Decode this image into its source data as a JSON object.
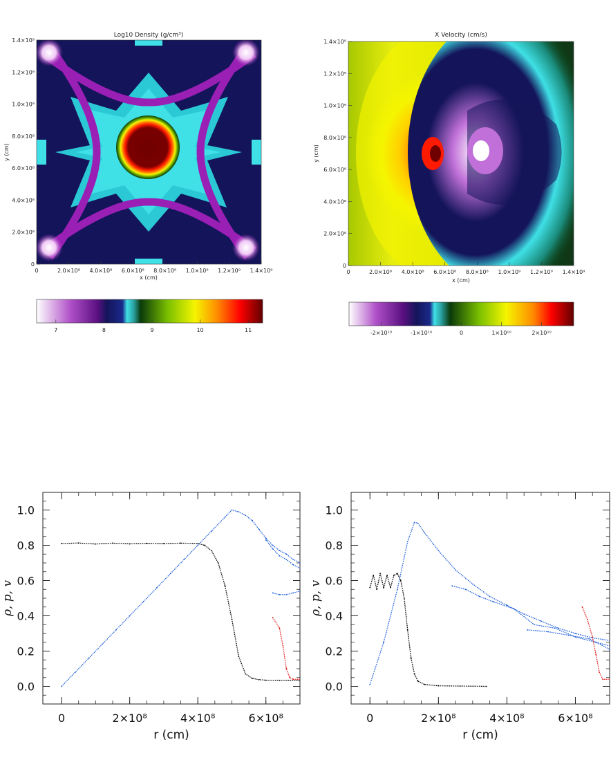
{
  "chart_data": [
    {
      "type": "heatmap",
      "title": "Log10 Density (g/cm³)",
      "xlabel": "x (cm)",
      "ylabel": "y (cm)",
      "xlim": [
        0,
        1400000000.0
      ],
      "ylim": [
        0,
        1400000000.0
      ],
      "x_ticks": [
        "0",
        "2.0×10⁸",
        "4.0×10⁸",
        "6.0×10⁸",
        "8.0×10⁸",
        "1.0×10⁹",
        "1.2×10⁹",
        "1.4×10⁹"
      ],
      "y_ticks": [
        "0",
        "2.0×10⁸",
        "4.0×10⁸",
        "6.0×10⁸",
        "8.0×10⁸",
        "1.0×10⁹",
        "1.2×10⁹",
        "1.4×10⁹"
      ],
      "colorbar": {
        "ticks": [
          "7",
          "8",
          "9",
          "10",
          "11"
        ],
        "range": [
          6.6,
          11.3
        ],
        "colors": [
          "#ffffff",
          "#9a1fb5",
          "#14145a",
          "#3fe0e6",
          "#0a3a0a",
          "#f5f500",
          "#ff6a00",
          "#ff0000",
          "#700000"
        ]
      }
    },
    {
      "type": "heatmap",
      "title": "X Velocity (cm/s)",
      "xlabel": "x (cm)",
      "ylabel": "y (cm)",
      "xlim": [
        0,
        1400000000.0
      ],
      "ylim": [
        0,
        1400000000.0
      ],
      "x_ticks": [
        "0",
        "2.0×10⁸",
        "4.0×10⁸",
        "6.0×10⁸",
        "8.0×10⁸",
        "1.0×10⁹",
        "1.2×10⁹",
        "1.4×10⁹"
      ],
      "y_ticks": [
        "0",
        "2.0×10⁸",
        "4.0×10⁸",
        "6.0×10⁸",
        "8.0×10⁸",
        "1.0×10⁹",
        "1.2×10⁹",
        "1.4×10⁹"
      ],
      "colorbar": {
        "ticks": [
          "-2×10¹⁰",
          "-1×10¹⁰",
          "0",
          "1×10¹⁰",
          "2×10¹⁰"
        ],
        "range": [
          -28000000000.0,
          28000000000.0
        ],
        "colors": [
          "#ffffff",
          "#9a1fb5",
          "#14145a",
          "#3fe0e6",
          "#0a3a0a",
          "#f5f500",
          "#ff6a00",
          "#ff0000",
          "#700000"
        ]
      }
    },
    {
      "type": "scatter",
      "xlabel": "r (cm)",
      "ylabel": "ρ, p, v",
      "xlim": [
        -55000000.0,
        700000000.0
      ],
      "ylim": [
        -0.1,
        1.1
      ],
      "x_ticks": [
        {
          "value": 0,
          "label": "0"
        },
        {
          "value": 200000000.0,
          "label": "2×10⁸"
        },
        {
          "value": 400000000.0,
          "label": "4×10⁸"
        },
        {
          "value": 600000000.0,
          "label": "6×10⁸"
        }
      ],
      "y_ticks": [
        0.0,
        0.2,
        0.4,
        0.6,
        0.8,
        1.0
      ],
      "series": [
        {
          "color": "#1f5fdc",
          "points": [
            [
              0,
              0.0
            ],
            [
              40000000.0,
              0.08
            ],
            [
              80000000.0,
              0.16
            ],
            [
              120000000.0,
              0.24
            ],
            [
              160000000.0,
              0.32
            ],
            [
              200000000.0,
              0.4
            ],
            [
              240000000.0,
              0.48
            ],
            [
              280000000.0,
              0.56
            ],
            [
              320000000.0,
              0.64
            ],
            [
              360000000.0,
              0.72
            ],
            [
              400000000.0,
              0.8
            ],
            [
              440000000.0,
              0.88
            ],
            [
              480000000.0,
              0.96
            ],
            [
              500000000.0,
              1.0
            ],
            [
              520000000.0,
              0.99
            ],
            [
              540000000.0,
              0.97
            ],
            [
              560000000.0,
              0.94
            ],
            [
              580000000.0,
              0.89
            ],
            [
              600000000.0,
              0.84
            ],
            [
              620000000.0,
              0.8
            ],
            [
              640000000.0,
              0.77
            ],
            [
              660000000.0,
              0.75
            ],
            [
              680000000.0,
              0.72
            ],
            [
              700000000.0,
              0.7
            ]
          ]
        },
        {
          "color": "#1f5fdc",
          "points": [
            [
              600000000.0,
              0.83
            ],
            [
              620000000.0,
              0.78
            ],
            [
              640000000.0,
              0.74
            ],
            [
              660000000.0,
              0.72
            ],
            [
              680000000.0,
              0.69
            ],
            [
              700000000.0,
              0.67
            ]
          ]
        },
        {
          "color": "#1f5fdc",
          "points": [
            [
              620000000.0,
              0.53
            ],
            [
              640000000.0,
              0.52
            ],
            [
              660000000.0,
              0.52
            ],
            [
              680000000.0,
              0.53
            ],
            [
              700000000.0,
              0.54
            ]
          ]
        },
        {
          "color": "#000000",
          "points": [
            [
              0,
              0.81
            ],
            [
              50000000.0,
              0.813
            ],
            [
              100000000.0,
              0.807
            ],
            [
              150000000.0,
              0.812
            ],
            [
              200000000.0,
              0.808
            ],
            [
              250000000.0,
              0.811
            ],
            [
              300000000.0,
              0.809
            ],
            [
              350000000.0,
              0.812
            ],
            [
              400000000.0,
              0.81
            ],
            [
              420000000.0,
              0.8
            ],
            [
              440000000.0,
              0.77
            ],
            [
              460000000.0,
              0.7
            ],
            [
              480000000.0,
              0.57
            ],
            [
              500000000.0,
              0.38
            ],
            [
              520000000.0,
              0.17
            ],
            [
              540000000.0,
              0.07
            ],
            [
              560000000.0,
              0.045
            ],
            [
              580000000.0,
              0.038
            ],
            [
              600000000.0,
              0.035
            ],
            [
              640000000.0,
              0.034
            ],
            [
              700000000.0,
              0.034
            ]
          ]
        },
        {
          "color": "#e02020",
          "points": [
            [
              620000000.0,
              0.39
            ],
            [
              640000000.0,
              0.33
            ],
            [
              650000000.0,
              0.23
            ],
            [
              660000000.0,
              0.1
            ],
            [
              670000000.0,
              0.05
            ],
            [
              680000000.0,
              0.04
            ],
            [
              700000000.0,
              0.04
            ]
          ]
        }
      ]
    },
    {
      "type": "scatter",
      "xlabel": "r (cm)",
      "ylabel": "ρ, p, v",
      "xlim": [
        -55000000.0,
        700000000.0
      ],
      "ylim": [
        -0.1,
        1.1
      ],
      "x_ticks": [
        {
          "value": 0,
          "label": "0"
        },
        {
          "value": 200000000.0,
          "label": "2×10⁸"
        },
        {
          "value": 400000000.0,
          "label": "4×10⁸"
        },
        {
          "value": 600000000.0,
          "label": "6×10⁸"
        }
      ],
      "y_ticks": [
        0.0,
        0.2,
        0.4,
        0.6,
        0.8,
        1.0
      ],
      "series": [
        {
          "color": "#1f5fdc",
          "points": [
            [
              0,
              0.01
            ],
            [
              40000000.0,
              0.25
            ],
            [
              80000000.0,
              0.55
            ],
            [
              110000000.0,
              0.82
            ],
            [
              130000000.0,
              0.93
            ],
            [
              140000000.0,
              0.925
            ],
            [
              160000000.0,
              0.87
            ],
            [
              200000000.0,
              0.77
            ],
            [
              250000000.0,
              0.66
            ],
            [
              300000000.0,
              0.58
            ],
            [
              350000000.0,
              0.51
            ],
            [
              400000000.0,
              0.46
            ],
            [
              450000000.0,
              0.41
            ],
            [
              500000000.0,
              0.37
            ],
            [
              550000000.0,
              0.33
            ],
            [
              600000000.0,
              0.3
            ],
            [
              650000000.0,
              0.275
            ],
            [
              700000000.0,
              0.26
            ]
          ]
        },
        {
          "color": "#1f5fdc",
          "points": [
            [
              240000000.0,
              0.57
            ],
            [
              280000000.0,
              0.55
            ],
            [
              320000000.0,
              0.51
            ],
            [
              360000000.0,
              0.48
            ],
            [
              420000000.0,
              0.44
            ],
            [
              480000000.0,
              0.35
            ],
            [
              540000000.0,
              0.33
            ],
            [
              600000000.0,
              0.28
            ],
            [
              660000000.0,
              0.25
            ],
            [
              700000000.0,
              0.23
            ]
          ]
        },
        {
          "color": "#1f5fdc",
          "points": [
            [
              460000000.0,
              0.32
            ],
            [
              520000000.0,
              0.31
            ],
            [
              580000000.0,
              0.29
            ],
            [
              640000000.0,
              0.27
            ],
            [
              700000000.0,
              0.21
            ]
          ]
        },
        {
          "color": "#000000",
          "points": [
            [
              0,
              0.56
            ],
            [
              10000000.0,
              0.63
            ],
            [
              20000000.0,
              0.55
            ],
            [
              30000000.0,
              0.64
            ],
            [
              40000000.0,
              0.56
            ],
            [
              50000000.0,
              0.63
            ],
            [
              60000000.0,
              0.56
            ],
            [
              70000000.0,
              0.63
            ],
            [
              80000000.0,
              0.64
            ],
            [
              90000000.0,
              0.6
            ],
            [
              100000000.0,
              0.5
            ],
            [
              110000000.0,
              0.32
            ],
            [
              120000000.0,
              0.16
            ],
            [
              130000000.0,
              0.07
            ],
            [
              140000000.0,
              0.03
            ],
            [
              160000000.0,
              0.01
            ],
            [
              200000000.0,
              0.003
            ],
            [
              340000000.0,
              0.0
            ]
          ]
        },
        {
          "color": "#e02020",
          "points": [
            [
              620000000.0,
              0.45
            ],
            [
              635000000.0,
              0.38
            ],
            [
              650000000.0,
              0.28
            ],
            [
              660000000.0,
              0.18
            ],
            [
              670000000.0,
              0.08
            ],
            [
              680000000.0,
              0.04
            ],
            [
              700000000.0,
              0.04
            ]
          ]
        }
      ]
    }
  ]
}
